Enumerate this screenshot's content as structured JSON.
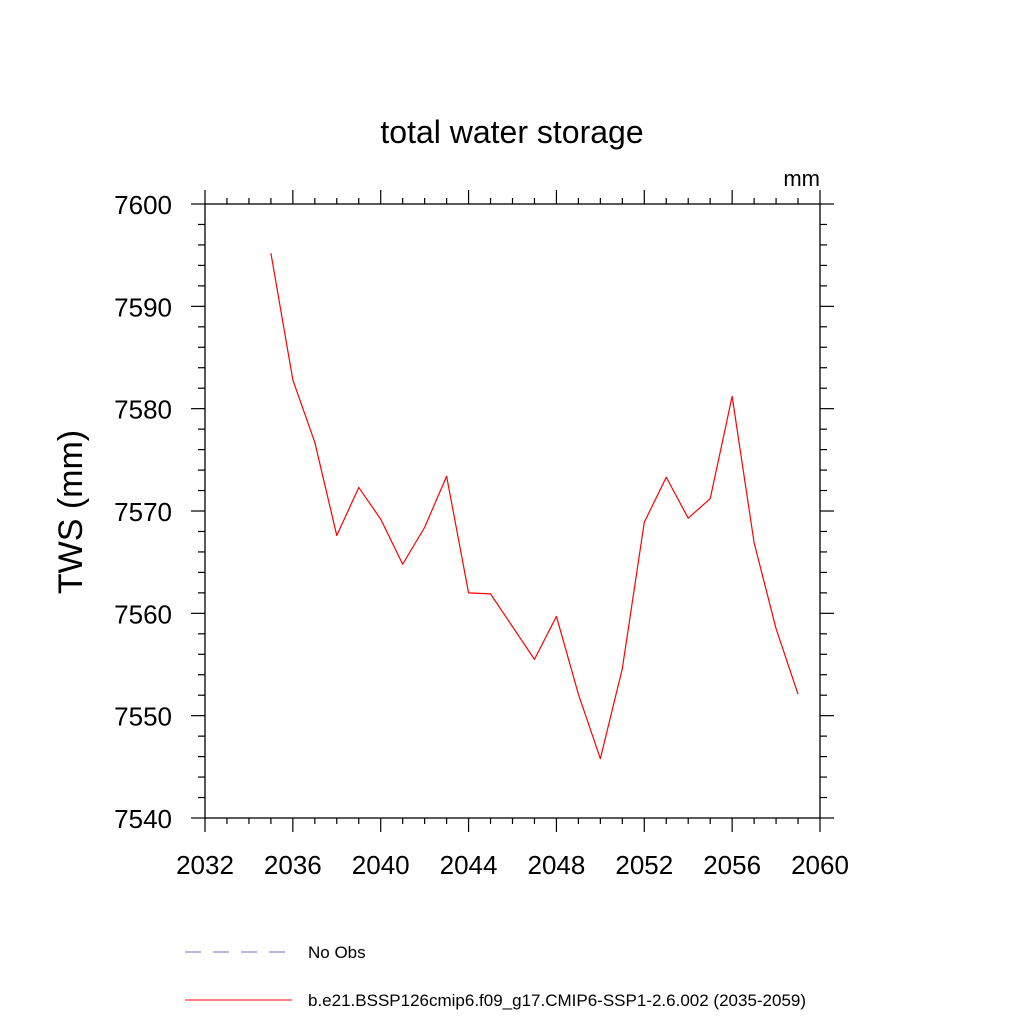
{
  "chart_data": {
    "type": "line",
    "title": "total water storage",
    "units_label": "mm",
    "xlabel": "",
    "ylabel": "TWS  (mm)",
    "xlim": [
      2032,
      2060
    ],
    "ylim": [
      7540,
      7600
    ],
    "x_ticks": [
      2032,
      2036,
      2040,
      2044,
      2048,
      2052,
      2056,
      2060
    ],
    "y_ticks": [
      7540,
      7550,
      7560,
      7570,
      7580,
      7590,
      7600
    ],
    "x_tick_labels": [
      "2032",
      "2036",
      "2040",
      "2044",
      "2048",
      "2052",
      "2056",
      "2060"
    ],
    "y_tick_labels": [
      "7540",
      "7550",
      "7560",
      "7570",
      "7580",
      "7590",
      "7600"
    ],
    "grid": false,
    "legend_position": "bottom",
    "series": [
      {
        "name": "b.e21.BSSP126cmip6.f09_g17.CMIP6-SSP1-2.6.002 (2035-2059)",
        "color": "#ff0000",
        "style": "solid",
        "x": [
          2035,
          2036,
          2037,
          2038,
          2039,
          2040,
          2041,
          2042,
          2043,
          2044,
          2045,
          2046,
          2047,
          2048,
          2049,
          2050,
          2051,
          2052,
          2053,
          2054,
          2055,
          2056,
          2057,
          2058,
          2059
        ],
        "values": [
          7595.2,
          7582.8,
          7576.7,
          7567.6,
          7572.3,
          7569.2,
          7564.8,
          7568.4,
          7573.4,
          7562.0,
          7561.9,
          7558.7,
          7555.5,
          7559.7,
          7552.1,
          7545.8,
          7554.6,
          7568.9,
          7573.3,
          7569.3,
          7571.2,
          7581.2,
          7566.9,
          7558.5,
          7552.1
        ]
      }
    ],
    "legend": [
      {
        "label": "No Obs",
        "color": "#7a6fb5",
        "style": "dashed"
      },
      {
        "label": "b.e21.BSSP126cmip6.f09_g17.CMIP6-SSP1-2.6.002 (2035-2059)",
        "color": "#ff0000",
        "style": "solid"
      }
    ]
  }
}
